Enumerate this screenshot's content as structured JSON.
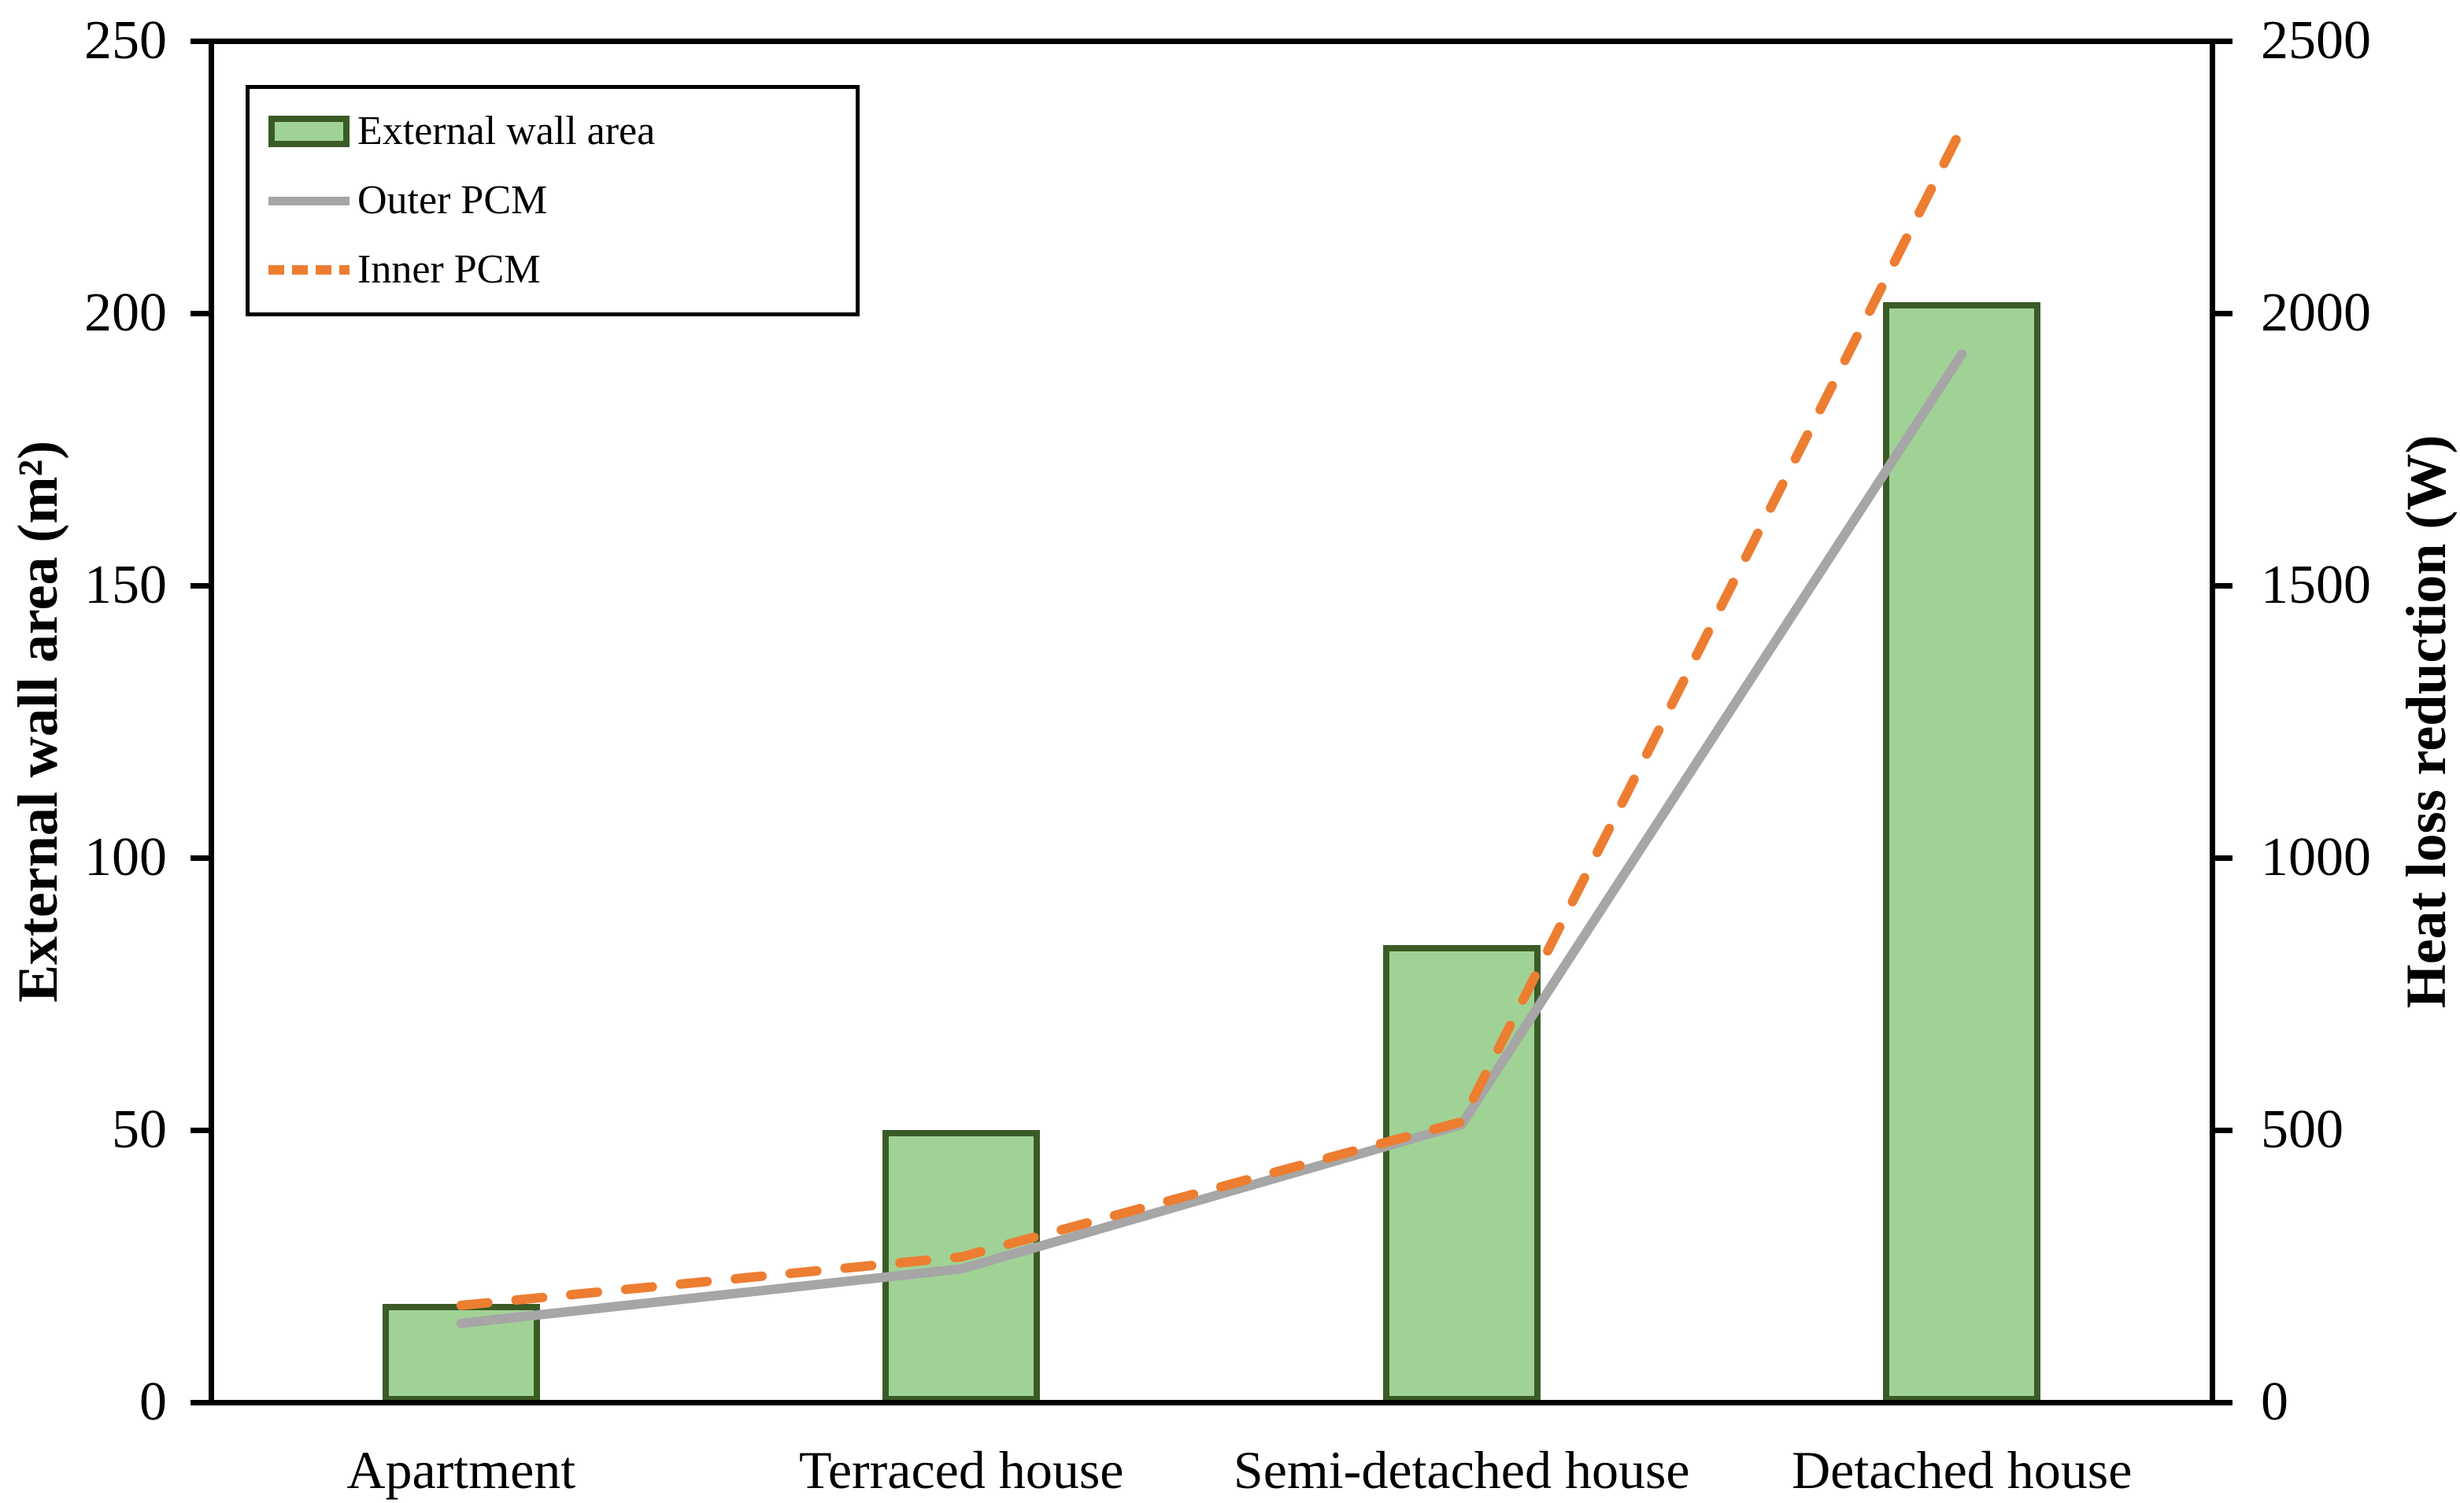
{
  "chart_data": {
    "type": "bar",
    "combo": "bar + two lines (secondary axis)",
    "title": "",
    "categories": [
      "Apartment",
      "Terraced house",
      "Semi-detached house",
      "Detached house"
    ],
    "series": [
      {
        "name": "External wall area",
        "type": "bar",
        "axis": "left",
        "values": [
          18,
          50,
          84,
          202
        ],
        "fill": "#a0d295",
        "border": "#3b5b26"
      },
      {
        "name": "Outer PCM",
        "type": "line",
        "style": "solid",
        "axis": "right",
        "values": [
          145,
          245,
          510,
          1925
        ],
        "color": "#a6a6a6"
      },
      {
        "name": "Inner PCM",
        "type": "line",
        "style": "dashed",
        "axis": "right",
        "values": [
          178,
          267,
          515,
          2340
        ],
        "color": "#ed7d31"
      }
    ],
    "left_axis": {
      "label": "External wall area (m²)",
      "min": 0,
      "max": 250,
      "tick_step": 50,
      "ticks": [
        0,
        50,
        100,
        150,
        200,
        250
      ]
    },
    "right_axis": {
      "label": "Heat loss reduction (W)",
      "min": 0,
      "max": 2500,
      "tick_step": 500,
      "ticks": [
        0,
        500,
        1000,
        1500,
        2000,
        2500
      ]
    },
    "legend": {
      "position": "top-left",
      "items": [
        "External wall area",
        "Outer PCM",
        "Inner PCM"
      ]
    },
    "grid": false,
    "frame": "full box, black",
    "colors": {
      "bar_fill": "#a0d295",
      "bar_border": "#3b5b26",
      "outer_pcm": "#a6a6a6",
      "inner_pcm": "#ed7d31",
      "axis": "#000000",
      "background": "#ffffff"
    }
  }
}
